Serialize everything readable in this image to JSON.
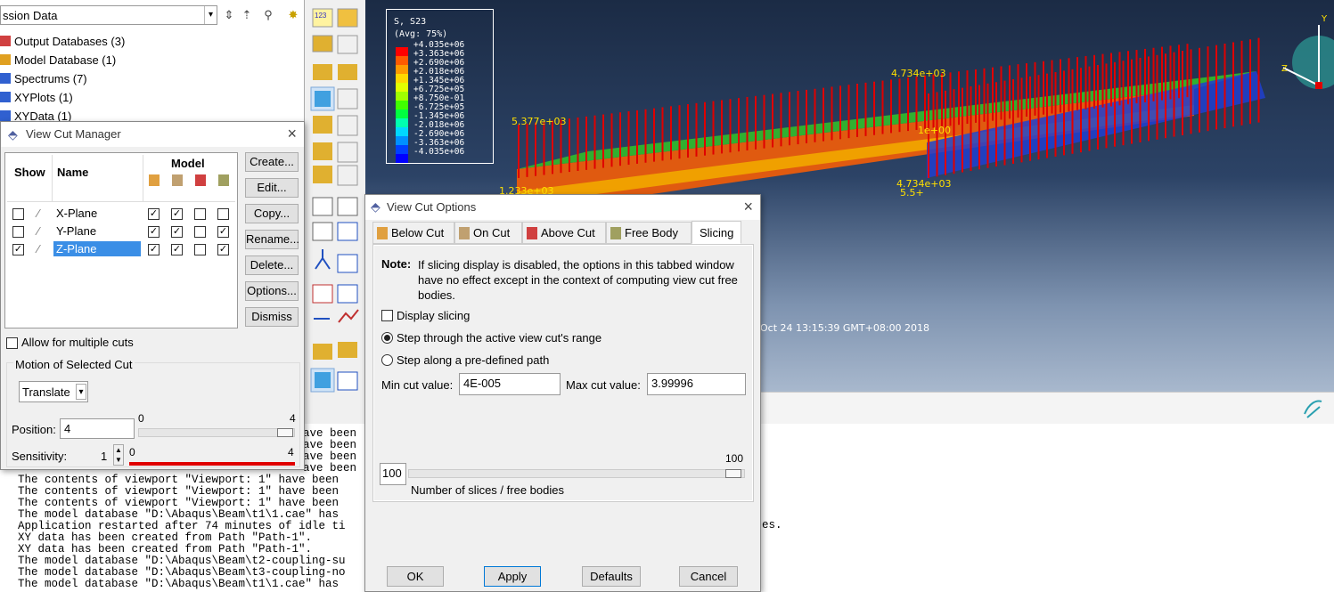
{
  "tree": {
    "combo_value": "ssion Data",
    "items": [
      {
        "label": "Output Databases (3)",
        "icon": "database-icon",
        "color": "#d04040"
      },
      {
        "label": "Model Database (1)",
        "icon": "database-icon",
        "color": "#e0a020"
      },
      {
        "label": "Spectrums (7)",
        "icon": "spectrum-icon",
        "color": "#3060d0"
      },
      {
        "label": "XYPlots (1)",
        "icon": "grid-icon",
        "color": "#3060d0"
      },
      {
        "label": "XYData (1)",
        "icon": "grid-icon",
        "color": "#3060d0"
      }
    ]
  },
  "legend": {
    "title_line1": "S, S23",
    "title_line2": "(Avg: 75%)",
    "entries": [
      {
        "value": "+4.035e+06",
        "color": "#ff0000"
      },
      {
        "value": "+3.363e+06",
        "color": "#ff5a00"
      },
      {
        "value": "+2.690e+06",
        "color": "#ff9a00"
      },
      {
        "value": "+2.018e+06",
        "color": "#ffd800"
      },
      {
        "value": "+1.345e+06",
        "color": "#e3ff00"
      },
      {
        "value": "+6.725e+05",
        "color": "#a0ff00"
      },
      {
        "value": "+8.750e-01",
        "color": "#40ff00"
      },
      {
        "value": "-6.725e+05",
        "color": "#00ff40"
      },
      {
        "value": "-1.345e+06",
        "color": "#00ffb0"
      },
      {
        "value": "-2.018e+06",
        "color": "#00d8ff"
      },
      {
        "value": "-2.690e+06",
        "color": "#0090ff"
      },
      {
        "value": "-3.363e+06",
        "color": "#0040ff"
      },
      {
        "value": "-4.035e+06",
        "color": "#0000ff"
      }
    ]
  },
  "viewport": {
    "timestamp": "Oct 24 13:15:39 GMT+08:00 2018",
    "labels": [
      "5.377e+03",
      "4.734e+03",
      "1e+00",
      "5.5+",
      "1.233e+03",
      "4.734e+03"
    ],
    "triad": {
      "x": "Z",
      "y": "Y"
    }
  },
  "messages": [
    "ave been",
    "ave been",
    "ave been",
    "ave been",
    "The contents of viewport \"Viewport: 1\" have been",
    "The contents of viewport \"Viewport: 1\" have been",
    "The contents of viewport \"Viewport: 1\" have been",
    "The model database \"D:\\Abaqus\\Beam\\t1\\1.cae\" has",
    "Application restarted after 74 minutes of idle ti",
    "XY data has been created from Path \"Path-1\".",
    "XY data has been created from Path \"Path-1\".",
    "The model database \"D:\\Abaqus\\Beam\\t2-coupling-su",
    "The model database \"D:\\Abaqus\\Beam\\t3-coupling-no",
    "The model database \"D:\\Abaqus\\Beam\\t1\\1.cae\" has"
  ],
  "msg_tail": "es.",
  "vcm": {
    "title": "View Cut Manager",
    "col_show": "Show",
    "col_name": "Name",
    "col_model": "Model",
    "rows": [
      {
        "name": "X-Plane",
        "show": false,
        "checks": [
          true,
          true,
          false,
          false
        ]
      },
      {
        "name": "Y-Plane",
        "show": false,
        "checks": [
          true,
          true,
          false,
          true
        ]
      },
      {
        "name": "Z-Plane",
        "show": true,
        "checks": [
          true,
          true,
          false,
          true
        ]
      }
    ],
    "buttons": [
      "Create...",
      "Edit...",
      "Copy...",
      "Rename...",
      "Delete...",
      "Options...",
      "Dismiss"
    ],
    "allow_multiple": "Allow for multiple cuts",
    "motion_group": "Motion of Selected Cut",
    "motion_type": "Translate",
    "position_label": "Position:",
    "position_value": "4",
    "position_min": "0",
    "position_max": "4",
    "sensitivity_label": "Sensitivity:",
    "sensitivity_value": "1",
    "sens_min": "0",
    "sens_max": "4"
  },
  "vco": {
    "title": "View Cut Options",
    "tabs": [
      "Below Cut",
      "On Cut",
      "Above Cut",
      "Free Body",
      "Slicing"
    ],
    "note_label": "Note:",
    "note_text": "If slicing display is disabled, the options in this tabbed window have no effect except in the context of computing view cut free bodies.",
    "display_slicing": "Display slicing",
    "radio_active": "Step through the active view cut's range",
    "radio_path": "Step along a pre-defined path",
    "min_label": "Min cut value:",
    "min_value": "4E-005",
    "max_label": "Max cut value:",
    "max_value": "3.99996",
    "slices_value": "100",
    "slices_max": "100",
    "slices_label": "Number of slices / free bodies",
    "ok": "OK",
    "apply": "Apply",
    "defaults": "Defaults",
    "cancel": "Cancel"
  }
}
